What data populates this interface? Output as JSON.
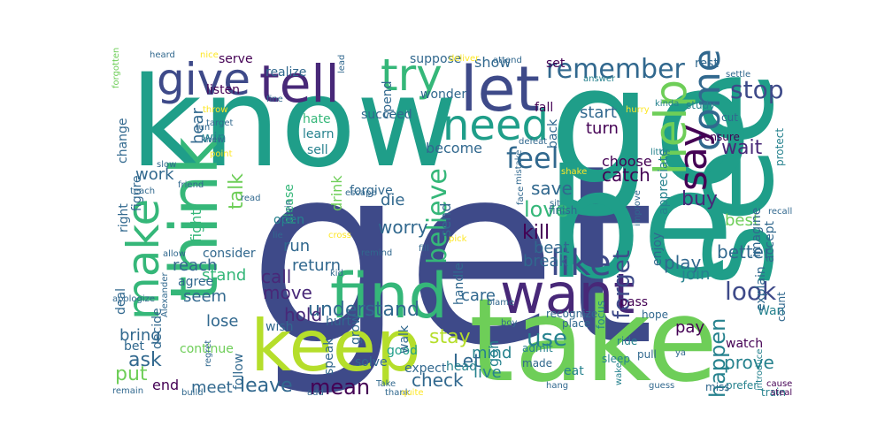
{
  "palette": {
    "purple": "#440154",
    "indigo": "#482878",
    "navy": "#3e4a89",
    "steel": "#31688e",
    "teal": "#26828e",
    "sea": "#1f9e89",
    "green": "#35b779",
    "lime": "#6ece58",
    "yellowgreen": "#b5de2b",
    "yellow": "#fde725"
  },
  "words": [
    {
      "text": "get"
    },
    {
      "text": "take"
    },
    {
      "text": "know"
    },
    {
      "text": "see"
    },
    {
      "text": "go"
    },
    {
      "text": "be"
    },
    {
      "text": "keep"
    },
    {
      "text": "think"
    },
    {
      "text": "find"
    },
    {
      "text": "want"
    },
    {
      "text": "make"
    },
    {
      "text": "tell"
    },
    {
      "text": "let"
    },
    {
      "text": "need"
    },
    {
      "text": "give"
    },
    {
      "text": "try"
    },
    {
      "text": "come"
    },
    {
      "text": "say"
    },
    {
      "text": "help"
    },
    {
      "text": "like"
    },
    {
      "text": "remember"
    },
    {
      "text": "feel"
    },
    {
      "text": "believe"
    },
    {
      "text": "look"
    },
    {
      "text": "stop"
    },
    {
      "text": "forget"
    },
    {
      "text": "mean"
    },
    {
      "text": "leave"
    },
    {
      "text": "use"
    },
    {
      "text": "understand"
    },
    {
      "text": "happen"
    },
    {
      "text": "ask"
    },
    {
      "text": "talk"
    },
    {
      "text": "love"
    },
    {
      "text": "kill"
    },
    {
      "text": "catch"
    },
    {
      "text": "save"
    },
    {
      "text": "wait"
    },
    {
      "text": "put"
    },
    {
      "text": "check"
    },
    {
      "text": "call"
    },
    {
      "text": "stay"
    },
    {
      "text": "buy"
    },
    {
      "text": "better"
    },
    {
      "text": "worry"
    },
    {
      "text": "move"
    },
    {
      "text": "run"
    },
    {
      "text": "hold"
    },
    {
      "text": "return"
    },
    {
      "text": "play"
    },
    {
      "text": "break"
    },
    {
      "text": "prove"
    },
    {
      "text": "bring"
    },
    {
      "text": "meet"
    },
    {
      "text": "lose"
    },
    {
      "text": "stand"
    },
    {
      "text": "die"
    },
    {
      "text": "beat"
    },
    {
      "text": "work"
    },
    {
      "text": "reach"
    },
    {
      "text": "join"
    },
    {
      "text": "start"
    },
    {
      "text": "turn"
    },
    {
      "text": "pay"
    },
    {
      "text": "mind"
    },
    {
      "text": "Let"
    },
    {
      "text": "drink"
    },
    {
      "text": "end"
    },
    {
      "text": "care"
    },
    {
      "text": "become"
    },
    {
      "text": "send"
    },
    {
      "text": "choose"
    },
    {
      "text": "show"
    },
    {
      "text": "gon"
    },
    {
      "text": "live"
    },
    {
      "text": "best"
    },
    {
      "text": "fight"
    },
    {
      "text": "seem"
    },
    {
      "text": "win"
    },
    {
      "text": "hear"
    },
    {
      "text": "handle"
    },
    {
      "text": "rest"
    },
    {
      "text": "appreciate"
    },
    {
      "text": "Wan"
    },
    {
      "text": "watch"
    },
    {
      "text": "enjoy"
    },
    {
      "text": "right"
    },
    {
      "text": "deal"
    },
    {
      "text": "hate"
    },
    {
      "text": "learn"
    },
    {
      "text": "sell"
    },
    {
      "text": "forgive"
    },
    {
      "text": "please"
    },
    {
      "text": "succeed"
    },
    {
      "text": "realize"
    },
    {
      "text": "serve"
    },
    {
      "text": "listen"
    },
    {
      "text": "change"
    },
    {
      "text": "figure"
    },
    {
      "text": "suppose"
    },
    {
      "text": "set"
    },
    {
      "text": "fall"
    },
    {
      "text": "wonder"
    },
    {
      "text": "spend"
    },
    {
      "text": "open"
    },
    {
      "text": "consider"
    },
    {
      "text": "agree"
    },
    {
      "text": "decide"
    },
    {
      "text": "good"
    },
    {
      "text": "expect"
    },
    {
      "text": "hurt"
    },
    {
      "text": "walk"
    },
    {
      "text": "grow"
    },
    {
      "text": "speak"
    },
    {
      "text": "wish"
    },
    {
      "text": "solve"
    },
    {
      "text": "head"
    },
    {
      "text": "continue"
    },
    {
      "text": "follow"
    },
    {
      "text": "bet"
    },
    {
      "text": "accept"
    },
    {
      "text": "explain"
    },
    {
      "text": "pass"
    },
    {
      "text": "imagine"
    },
    {
      "text": "back"
    },
    {
      "text": "protect"
    },
    {
      "text": "eat"
    },
    {
      "text": "count"
    },
    {
      "text": "sleep"
    },
    {
      "text": "hope"
    },
    {
      "text": "pull"
    },
    {
      "text": "focus"
    },
    {
      "text": "ride"
    },
    {
      "text": "made"
    },
    {
      "text": "admit"
    },
    {
      "text": "place"
    },
    {
      "text": "recognize"
    },
    {
      "text": "finish"
    },
    {
      "text": "prefer"
    },
    {
      "text": "miss"
    },
    {
      "text": "train"
    },
    {
      "text": "steal"
    },
    {
      "text": "recall"
    },
    {
      "text": "cause"
    },
    {
      "text": "cut"
    },
    {
      "text": "ensure"
    },
    {
      "text": "settle"
    },
    {
      "text": "study"
    },
    {
      "text": "kinda"
    },
    {
      "text": "little"
    },
    {
      "text": "improve"
    },
    {
      "text": "answer"
    },
    {
      "text": "attend"
    },
    {
      "text": "deliver"
    },
    {
      "text": "hurry"
    },
    {
      "text": "defeat"
    },
    {
      "text": "shake"
    },
    {
      "text": "lead"
    },
    {
      "text": "nice"
    },
    {
      "text": "heard"
    },
    {
      "text": "forgotten"
    },
    {
      "text": "throw"
    },
    {
      "text": "target"
    },
    {
      "text": "fun"
    },
    {
      "text": "knew"
    },
    {
      "text": "fine"
    },
    {
      "text": "slow"
    },
    {
      "text": "friend"
    },
    {
      "text": "teach"
    },
    {
      "text": "point"
    },
    {
      "text": "escape"
    },
    {
      "text": "read"
    },
    {
      "text": "lie"
    },
    {
      "text": "begin"
    },
    {
      "text": "kid"
    },
    {
      "text": "remind"
    },
    {
      "text": "fill"
    },
    {
      "text": "cross"
    },
    {
      "text": "apologize"
    },
    {
      "text": "allow"
    },
    {
      "text": "Alexander"
    },
    {
      "text": "regret"
    },
    {
      "text": "build"
    },
    {
      "text": "add"
    },
    {
      "text": "remain"
    },
    {
      "text": "thank"
    },
    {
      "text": "quite"
    },
    {
      "text": "Take"
    },
    {
      "text": "hang"
    },
    {
      "text": "blame"
    },
    {
      "text": "boy"
    },
    {
      "text": "sit"
    },
    {
      "text": "face"
    },
    {
      "text": "pick"
    },
    {
      "text": "mistake"
    },
    {
      "text": "wake"
    },
    {
      "text": "guess"
    },
    {
      "text": "ya"
    },
    {
      "text": "introduce"
    }
  ]
}
